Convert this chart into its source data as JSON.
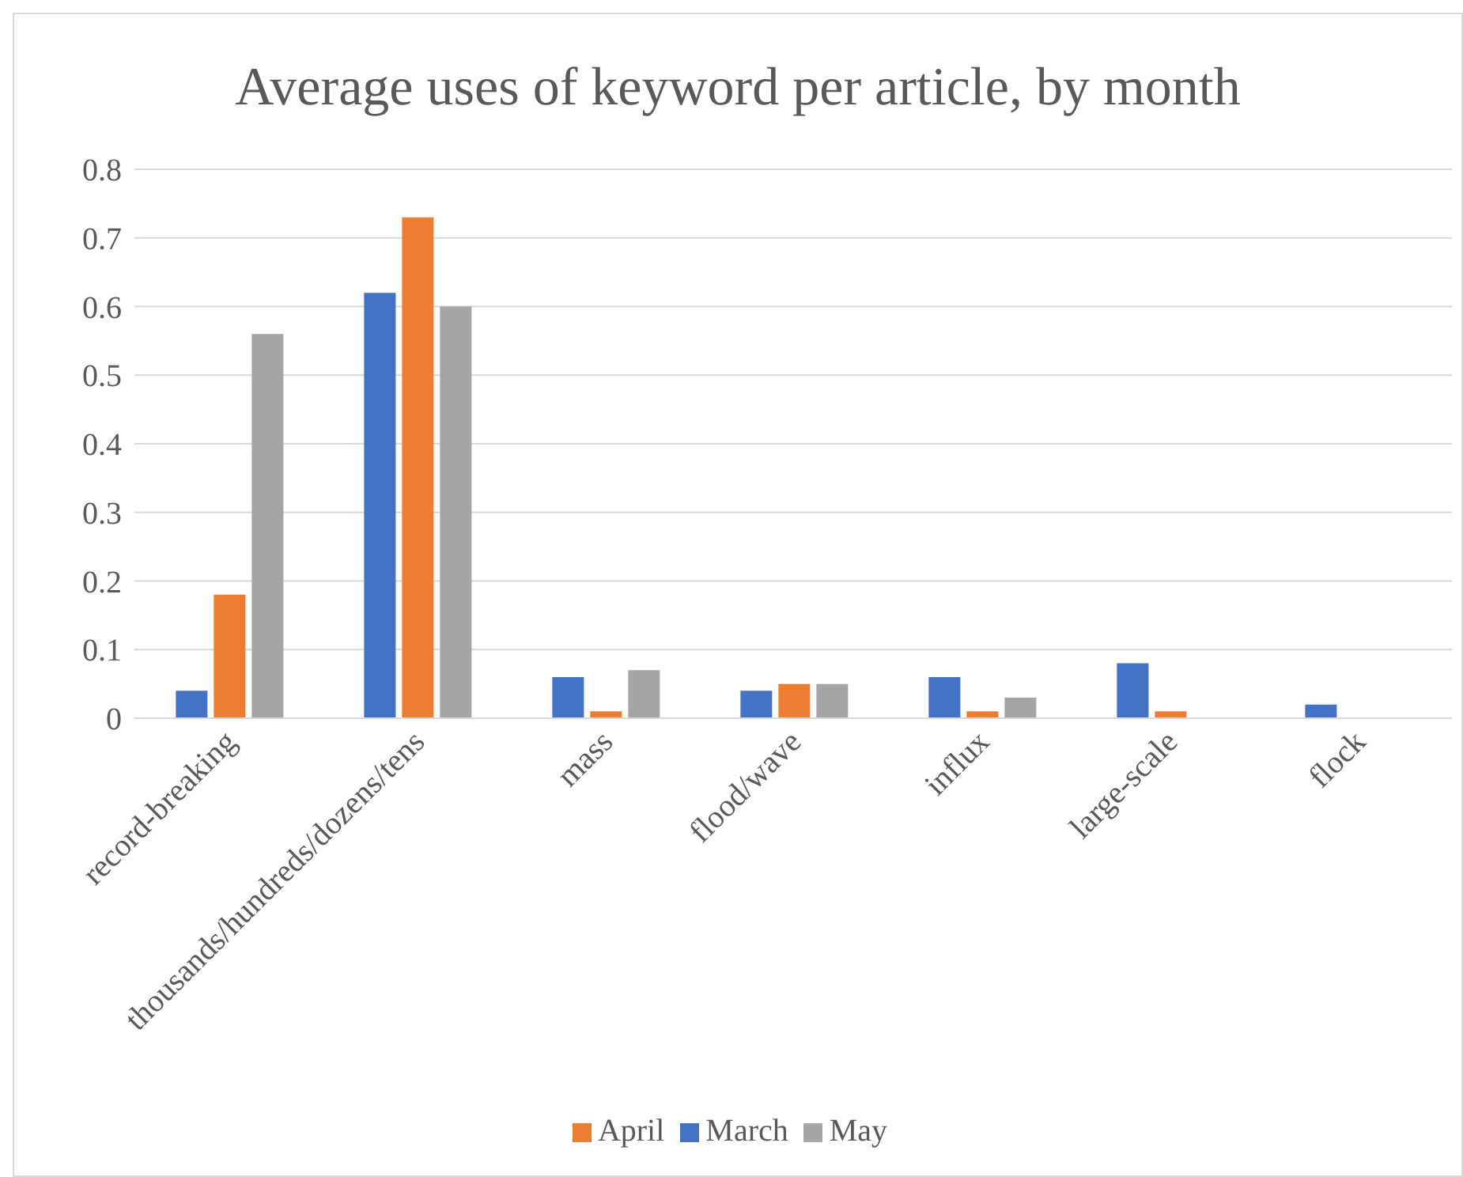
{
  "chart_data": {
    "type": "bar",
    "title": "Average uses of keyword per article, by month",
    "categories": [
      "record-breaking",
      "thousands/hundreds/dozens/tens",
      "mass",
      "flood/wave",
      "influx",
      "large-scale",
      "flock"
    ],
    "series": [
      {
        "name": "March",
        "color": "#4472c4",
        "values": [
          0.04,
          0.62,
          0.06,
          0.04,
          0.06,
          0.08,
          0.02
        ]
      },
      {
        "name": "April",
        "color": "#ed7d31",
        "values": [
          0.18,
          0.73,
          0.01,
          0.05,
          0.01,
          0.01,
          0
        ]
      },
      {
        "name": "May",
        "color": "#a5a5a5",
        "values": [
          0.56,
          0.6,
          0.07,
          0.05,
          0.03,
          0,
          0
        ]
      }
    ],
    "ylim": [
      0,
      0.8
    ],
    "yticks": [
      0,
      0.1,
      0.2,
      0.3,
      0.4,
      0.5,
      0.6,
      0.7,
      0.8
    ],
    "grid": "y",
    "legend": "bottom"
  }
}
